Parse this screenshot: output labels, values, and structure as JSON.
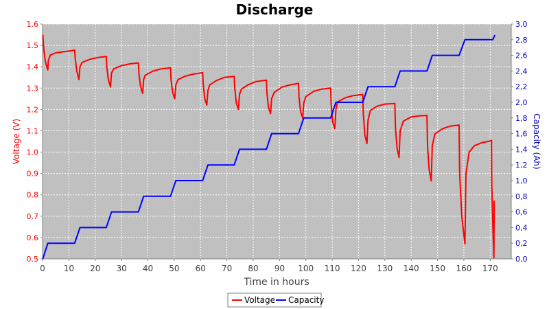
{
  "chart_data": {
    "type": "line",
    "title": "Discharge",
    "xlabel": "Time in hours",
    "ylabel_left": "Voltage (V)",
    "ylabel_right": "Capacity (Ah)",
    "xlim": [
      0,
      178
    ],
    "ylim_left": [
      0.5,
      1.6
    ],
    "ylim_right": [
      0.0,
      3.0
    ],
    "x_ticks": [
      "0",
      "10",
      "20",
      "30",
      "40",
      "50",
      "60",
      "70",
      "80",
      "90",
      "100",
      "110",
      "120",
      "130",
      "140",
      "150",
      "160",
      "170"
    ],
    "y_left_ticks": [
      "0.5",
      "0.6",
      "0.7",
      "0.8",
      "0.9",
      "1.0",
      "1.1",
      "1.2",
      "1.3",
      "1.4",
      "1.5",
      "1.6"
    ],
    "y_right_ticks": [
      "0,0",
      "0,2",
      "0,4",
      "0,6",
      "0,8",
      "1,0",
      "1,2",
      "1,4",
      "1,6",
      "1,8",
      "2,0",
      "2,2",
      "2,4",
      "2,6",
      "2,8",
      "3,0"
    ],
    "grid": true,
    "legend_position": "bottom",
    "colors": {
      "voltage": "#ff0000",
      "capacity": "#0000ff",
      "plot_bg": "#c0c0c0"
    },
    "series": [
      {
        "name": "Voltage",
        "axis": "left",
        "points": [
          [
            0.1,
            1.55
          ],
          [
            0.5,
            1.48
          ],
          [
            1.0,
            1.43
          ],
          [
            1.6,
            1.4
          ],
          [
            2.0,
            1.385
          ],
          [
            2.2,
            1.43
          ],
          [
            3,
            1.455
          ],
          [
            5,
            1.465
          ],
          [
            8,
            1.47
          ],
          [
            11,
            1.475
          ],
          [
            12.2,
            1.478
          ],
          [
            12.4,
            1.44
          ],
          [
            13,
            1.38
          ],
          [
            13.8,
            1.34
          ],
          [
            14.2,
            1.4
          ],
          [
            15,
            1.42
          ],
          [
            18,
            1.435
          ],
          [
            21,
            1.443
          ],
          [
            24.2,
            1.448
          ],
          [
            24.4,
            1.4
          ],
          [
            25,
            1.34
          ],
          [
            25.8,
            1.305
          ],
          [
            26.2,
            1.37
          ],
          [
            27,
            1.39
          ],
          [
            30,
            1.405
          ],
          [
            33,
            1.413
          ],
          [
            36.4,
            1.418
          ],
          [
            36.6,
            1.37
          ],
          [
            37.2,
            1.31
          ],
          [
            38.0,
            1.275
          ],
          [
            38.4,
            1.34
          ],
          [
            39,
            1.36
          ],
          [
            42,
            1.38
          ],
          [
            45,
            1.39
          ],
          [
            48.6,
            1.395
          ],
          [
            48.8,
            1.34
          ],
          [
            49.4,
            1.28
          ],
          [
            50.2,
            1.25
          ],
          [
            50.6,
            1.315
          ],
          [
            51.5,
            1.34
          ],
          [
            54,
            1.355
          ],
          [
            57,
            1.365
          ],
          [
            60.8,
            1.372
          ],
          [
            61.0,
            1.32
          ],
          [
            61.6,
            1.25
          ],
          [
            62.4,
            1.22
          ],
          [
            62.8,
            1.29
          ],
          [
            63.5,
            1.315
          ],
          [
            66,
            1.335
          ],
          [
            69,
            1.35
          ],
          [
            72.8,
            1.355
          ],
          [
            73.0,
            1.3
          ],
          [
            73.6,
            1.23
          ],
          [
            74.4,
            1.2
          ],
          [
            74.8,
            1.27
          ],
          [
            75.5,
            1.295
          ],
          [
            78,
            1.315
          ],
          [
            81,
            1.33
          ],
          [
            85.0,
            1.337
          ],
          [
            85.2,
            1.28
          ],
          [
            85.8,
            1.21
          ],
          [
            86.6,
            1.18
          ],
          [
            87.0,
            1.25
          ],
          [
            88,
            1.28
          ],
          [
            91,
            1.305
          ],
          [
            94,
            1.315
          ],
          [
            97.2,
            1.322
          ],
          [
            97.4,
            1.26
          ],
          [
            98.0,
            1.19
          ],
          [
            98.8,
            1.16
          ],
          [
            99.2,
            1.23
          ],
          [
            100,
            1.26
          ],
          [
            103,
            1.285
          ],
          [
            106,
            1.295
          ],
          [
            109.4,
            1.3
          ],
          [
            109.6,
            1.23
          ],
          [
            110.2,
            1.14
          ],
          [
            111.0,
            1.11
          ],
          [
            111.4,
            1.2
          ],
          [
            112,
            1.235
          ],
          [
            115,
            1.255
          ],
          [
            118,
            1.265
          ],
          [
            121.6,
            1.27
          ],
          [
            121.8,
            1.18
          ],
          [
            122.4,
            1.08
          ],
          [
            123.2,
            1.04
          ],
          [
            123.6,
            1.15
          ],
          [
            124.5,
            1.195
          ],
          [
            127,
            1.215
          ],
          [
            130,
            1.225
          ],
          [
            133.8,
            1.228
          ],
          [
            134.0,
            1.12
          ],
          [
            134.6,
            1.02
          ],
          [
            135.4,
            0.975
          ],
          [
            135.8,
            1.1
          ],
          [
            137,
            1.145
          ],
          [
            140,
            1.165
          ],
          [
            143,
            1.17
          ],
          [
            146.0,
            1.172
          ],
          [
            146.2,
            1.03
          ],
          [
            146.8,
            0.92
          ],
          [
            147.6,
            0.865
          ],
          [
            148.0,
            1.03
          ],
          [
            149,
            1.085
          ],
          [
            152,
            1.11
          ],
          [
            155,
            1.122
          ],
          [
            158.2,
            1.127
          ],
          [
            158.4,
            0.9
          ],
          [
            159.2,
            0.7
          ],
          [
            160.4,
            0.57
          ],
          [
            160.8,
            0.9
          ],
          [
            162,
            1.0
          ],
          [
            164,
            1.03
          ],
          [
            167,
            1.045
          ],
          [
            170.0,
            1.052
          ],
          [
            170.5,
            1.055
          ],
          [
            170.6,
            0.85
          ],
          [
            171.1,
            0.62
          ],
          [
            171.4,
            0.505
          ],
          [
            171.5,
            0.77
          ],
          [
            171.8,
            0.77
          ]
        ]
      },
      {
        "name": "Capacity",
        "axis": "right",
        "points": [
          [
            0.1,
            0.0
          ],
          [
            2.0,
            0.2
          ],
          [
            12.2,
            0.2
          ],
          [
            14.2,
            0.4
          ],
          [
            24.2,
            0.4
          ],
          [
            26.2,
            0.6
          ],
          [
            36.4,
            0.6
          ],
          [
            38.4,
            0.8
          ],
          [
            48.6,
            0.8
          ],
          [
            50.6,
            1.0
          ],
          [
            60.8,
            1.0
          ],
          [
            62.8,
            1.2
          ],
          [
            72.8,
            1.2
          ],
          [
            74.8,
            1.4
          ],
          [
            85.0,
            1.4
          ],
          [
            87.0,
            1.6
          ],
          [
            97.2,
            1.6
          ],
          [
            99.2,
            1.8
          ],
          [
            109.4,
            1.8
          ],
          [
            111.4,
            2.0
          ],
          [
            121.6,
            2.0
          ],
          [
            123.6,
            2.2
          ],
          [
            133.8,
            2.2
          ],
          [
            135.8,
            2.4
          ],
          [
            146.0,
            2.4
          ],
          [
            148.0,
            2.6
          ],
          [
            158.2,
            2.6
          ],
          [
            160.4,
            2.8
          ],
          [
            170.0,
            2.8
          ],
          [
            171.0,
            2.8
          ],
          [
            171.8,
            2.86
          ]
        ]
      }
    ]
  }
}
